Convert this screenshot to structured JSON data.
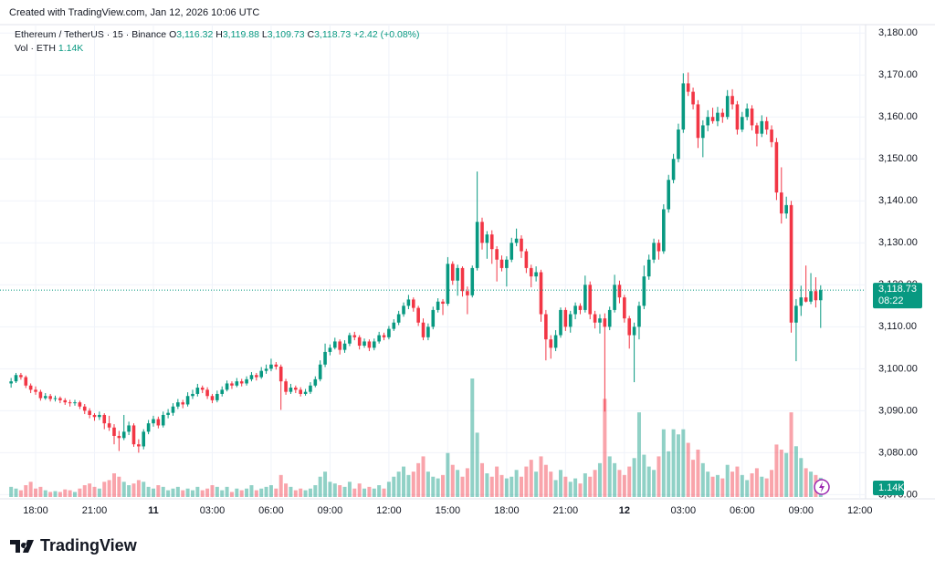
{
  "header": {
    "created": "Created with TradingView.com, Jan 12, 2026 10:06 UTC",
    "symbol": "Ethereum / TetherUS · 15 · Binance",
    "o_label": "O",
    "h_label": "H",
    "l_label": "L",
    "c_label": "C",
    "open": "3,116.32",
    "high": "3,119.88",
    "low": "3,109.73",
    "close": "3,118.73",
    "change": "+2.42 (+0.08%)",
    "volume_title": "Vol · ETH"
  },
  "footer": {
    "brand": "TradingView"
  },
  "chart_data": {
    "type": "candlestick",
    "up_color": "#089981",
    "down_color": "#f23645",
    "grid": true,
    "ylim": [
      3069,
      3182
    ],
    "yticks": [
      {
        "value": 3070,
        "label": "3,070.00"
      },
      {
        "value": 3080,
        "label": "3,080.00"
      },
      {
        "value": 3090,
        "label": "3,090.00"
      },
      {
        "value": 3100,
        "label": "3,100.00"
      },
      {
        "value": 3110,
        "label": "3,110.00"
      },
      {
        "value": 3120,
        "label": "3,120.00"
      },
      {
        "value": 3130,
        "label": "3,130.00"
      },
      {
        "value": 3140,
        "label": "3,140.00"
      },
      {
        "value": 3150,
        "label": "3,150.00"
      },
      {
        "value": 3160,
        "label": "3,160.00"
      },
      {
        "value": 3170,
        "label": "3,170.00"
      },
      {
        "value": 3180,
        "label": "3,180.00"
      }
    ],
    "xlim": [
      -0.4,
      173.6
    ],
    "xticks": [
      {
        "value": 5,
        "label": "18:00"
      },
      {
        "value": 17,
        "label": "21:00"
      },
      {
        "value": 29,
        "label": "11"
      },
      {
        "value": 41,
        "label": "03:00"
      },
      {
        "value": 53,
        "label": "06:00"
      },
      {
        "value": 65,
        "label": "09:00"
      },
      {
        "value": 77,
        "label": "12:00"
      },
      {
        "value": 89,
        "label": "15:00"
      },
      {
        "value": 101,
        "label": "18:00"
      },
      {
        "value": 113,
        "label": "21:00"
      },
      {
        "value": 125,
        "label": "12"
      },
      {
        "value": 137,
        "label": "03:00"
      },
      {
        "value": 149,
        "label": "06:00"
      },
      {
        "value": 161,
        "label": "09:00"
      },
      {
        "value": 173,
        "label": "12:00"
      }
    ],
    "last_price": {
      "value": 3118.73,
      "label": "3,118.73"
    },
    "countdown": "08:22",
    "last_volume": {
      "value": 1140,
      "label": "1.14K"
    },
    "candles": [
      [
        3096.5,
        3097.8,
        3095.5,
        3097,
        600
      ],
      [
        3097,
        3099,
        3096.6,
        3098.5,
        500
      ],
      [
        3098.5,
        3099,
        3097.4,
        3098,
        400
      ],
      [
        3098,
        3098.4,
        3095.4,
        3096,
        700
      ],
      [
        3096,
        3096.5,
        3094.2,
        3095,
        900
      ],
      [
        3095,
        3095.8,
        3093.8,
        3094.5,
        500
      ],
      [
        3094.5,
        3095,
        3092.4,
        3093,
        600
      ],
      [
        3093,
        3094.2,
        3092.6,
        3093.5,
        400
      ],
      [
        3093.5,
        3094,
        3092.2,
        3092.8,
        300
      ],
      [
        3092.8,
        3093.6,
        3092.2,
        3093,
        350
      ],
      [
        3093,
        3093.4,
        3091.8,
        3092.5,
        300
      ],
      [
        3092.5,
        3093,
        3091.4,
        3092,
        450
      ],
      [
        3092,
        3092.6,
        3091,
        3091.8,
        400
      ],
      [
        3091.8,
        3092.6,
        3091.2,
        3092,
        300
      ],
      [
        3092,
        3092.4,
        3090.4,
        3091,
        500
      ],
      [
        3091,
        3091.6,
        3089.2,
        3090,
        700
      ],
      [
        3090,
        3090.6,
        3088.2,
        3089,
        800
      ],
      [
        3089,
        3089.4,
        3087.6,
        3088.5,
        600
      ],
      [
        3088.5,
        3089.8,
        3087.8,
        3089,
        500
      ],
      [
        3089,
        3089.4,
        3085.6,
        3087,
        900
      ],
      [
        3087,
        3088.8,
        3085.2,
        3086,
        1000
      ],
      [
        3086,
        3086.8,
        3082,
        3084,
        1400
      ],
      [
        3084,
        3085.2,
        3080.4,
        3083.5,
        1200
      ],
      [
        3083.5,
        3089,
        3083,
        3085,
        900
      ],
      [
        3085,
        3087.4,
        3084.2,
        3086.5,
        700
      ],
      [
        3086.5,
        3087,
        3081.4,
        3082,
        800
      ],
      [
        3082,
        3083.2,
        3080,
        3081.5,
        1000
      ],
      [
        3081.5,
        3085.6,
        3080.8,
        3085,
        900
      ],
      [
        3085,
        3087.8,
        3084.4,
        3087,
        600
      ],
      [
        3087,
        3088.8,
        3086.2,
        3088,
        500
      ],
      [
        3088,
        3088.6,
        3085.8,
        3086.5,
        700
      ],
      [
        3086.5,
        3089.8,
        3086,
        3089,
        600
      ],
      [
        3089,
        3090.4,
        3088.2,
        3089.5,
        400
      ],
      [
        3089.5,
        3091.8,
        3088.8,
        3091,
        500
      ],
      [
        3091,
        3092.8,
        3090.4,
        3092,
        600
      ],
      [
        3092,
        3092.6,
        3090.6,
        3091.5,
        400
      ],
      [
        3091.5,
        3094.4,
        3091,
        3093.5,
        500
      ],
      [
        3093.5,
        3095,
        3092.8,
        3094,
        400
      ],
      [
        3094,
        3096.4,
        3093.4,
        3095.5,
        600
      ],
      [
        3095.5,
        3096,
        3094.2,
        3095,
        400
      ],
      [
        3095,
        3095.6,
        3092.8,
        3093.5,
        500
      ],
      [
        3093.5,
        3094,
        3091.8,
        3092.5,
        700
      ],
      [
        3092.5,
        3094.8,
        3092,
        3094,
        600
      ],
      [
        3094,
        3095.8,
        3093.4,
        3095,
        400
      ],
      [
        3095,
        3097.2,
        3094.6,
        3096.5,
        600
      ],
      [
        3096.5,
        3097,
        3095.2,
        3096,
        300
      ],
      [
        3096,
        3097.8,
        3095.6,
        3097,
        500
      ],
      [
        3097,
        3097.6,
        3095.8,
        3096.5,
        400
      ],
      [
        3096.5,
        3098.2,
        3096,
        3097.5,
        500
      ],
      [
        3097.5,
        3099.2,
        3097,
        3098.5,
        700
      ],
      [
        3098.5,
        3099,
        3097.2,
        3098,
        400
      ],
      [
        3098,
        3100.4,
        3097.6,
        3099.5,
        500
      ],
      [
        3099.5,
        3101,
        3098.8,
        3100,
        600
      ],
      [
        3100,
        3102.4,
        3099.4,
        3101,
        700
      ],
      [
        3101,
        3101.6,
        3099.8,
        3100.5,
        500
      ],
      [
        3100.5,
        3101,
        3090.2,
        3097,
        1300
      ],
      [
        3097,
        3097.6,
        3093.8,
        3094.5,
        800
      ],
      [
        3094.5,
        3096.4,
        3094,
        3095.5,
        600
      ],
      [
        3095.5,
        3096,
        3094.2,
        3095,
        400
      ],
      [
        3095,
        3095.6,
        3093.4,
        3094,
        500
      ],
      [
        3094,
        3095.2,
        3093.6,
        3094.5,
        400
      ],
      [
        3094.5,
        3096.8,
        3094,
        3096,
        500
      ],
      [
        3096,
        3098.2,
        3095.6,
        3097.5,
        700
      ],
      [
        3097.5,
        3102,
        3097,
        3101,
        1200
      ],
      [
        3101,
        3106,
        3100.4,
        3104,
        1500
      ],
      [
        3104,
        3105.8,
        3103.2,
        3105,
        900
      ],
      [
        3105,
        3107.4,
        3104.6,
        3106.5,
        800
      ],
      [
        3106.5,
        3107,
        3103.4,
        3104.5,
        700
      ],
      [
        3104.5,
        3106.8,
        3103.8,
        3106,
        600
      ],
      [
        3106,
        3108.6,
        3105.4,
        3108,
        900
      ],
      [
        3108,
        3108.8,
        3106.8,
        3107.5,
        500
      ],
      [
        3107.5,
        3108,
        3104.6,
        3105.5,
        800
      ],
      [
        3105.5,
        3107.2,
        3105,
        3106.5,
        500
      ],
      [
        3106.5,
        3107,
        3104.2,
        3105,
        600
      ],
      [
        3105,
        3107.2,
        3104.4,
        3106.5,
        500
      ],
      [
        3106.5,
        3108.8,
        3106,
        3108,
        700
      ],
      [
        3108,
        3108.6,
        3106.8,
        3107.5,
        500
      ],
      [
        3107.5,
        3110.2,
        3107,
        3109.5,
        900
      ],
      [
        3109.5,
        3111.8,
        3109,
        3111,
        1200
      ],
      [
        3111,
        3113.8,
        3110.4,
        3113,
        1500
      ],
      [
        3113,
        3115.8,
        3112.4,
        3115,
        1800
      ],
      [
        3115,
        3117.6,
        3114.2,
        3116.5,
        1300
      ],
      [
        3116.5,
        3117,
        3113.6,
        3114.5,
        1500
      ],
      [
        3114.5,
        3115,
        3110.2,
        3111,
        2000
      ],
      [
        3111,
        3112,
        3106.8,
        3107.5,
        2400
      ],
      [
        3107.5,
        3110.8,
        3106.8,
        3110,
        1500
      ],
      [
        3110,
        3114.8,
        3109.4,
        3114,
        1200
      ],
      [
        3114,
        3116.8,
        3113.4,
        3116,
        1100
      ],
      [
        3116,
        3116.6,
        3112.8,
        3115.5,
        1300
      ],
      [
        3115.5,
        3126.6,
        3115,
        3125,
        2600
      ],
      [
        3125,
        3125.6,
        3120,
        3121,
        1900
      ],
      [
        3121,
        3124.8,
        3117.4,
        3124,
        1600
      ],
      [
        3124,
        3124.4,
        3117.2,
        3118.5,
        1200
      ],
      [
        3118.5,
        3119.6,
        3113,
        3117.5,
        1700
      ],
      [
        3117.5,
        3124.6,
        3117,
        3124,
        7000
      ],
      [
        3124,
        3147,
        3123.4,
        3135,
        3800
      ],
      [
        3135,
        3136,
        3128.4,
        3130,
        2000
      ],
      [
        3130,
        3132.8,
        3126.2,
        3132,
        1400
      ],
      [
        3132,
        3133,
        3125,
        3128.5,
        1200
      ],
      [
        3128.5,
        3129.2,
        3120.8,
        3126,
        1800
      ],
      [
        3126,
        3127,
        3123.2,
        3124,
        1300
      ],
      [
        3124,
        3126.8,
        3119.6,
        3126,
        1100
      ],
      [
        3126,
        3131.2,
        3125.4,
        3130,
        1200
      ],
      [
        3130,
        3133.4,
        3129.2,
        3131,
        1600
      ],
      [
        3131,
        3131.8,
        3126.4,
        3128,
        1200
      ],
      [
        3128,
        3128.6,
        3122.8,
        3124,
        1800
      ],
      [
        3124,
        3124.8,
        3119.4,
        3122,
        2200
      ],
      [
        3122,
        3124.4,
        3120.8,
        3123,
        1500
      ],
      [
        3123,
        3123.6,
        3111.2,
        3113,
        2400
      ],
      [
        3113,
        3114,
        3102,
        3107,
        1900
      ],
      [
        3107,
        3108,
        3102.4,
        3105,
        1500
      ],
      [
        3105,
        3109.2,
        3104.2,
        3108,
        1000
      ],
      [
        3108,
        3114.6,
        3107.4,
        3114,
        1600
      ],
      [
        3114,
        3114.6,
        3109,
        3110,
        1200
      ],
      [
        3110,
        3113.8,
        3108.6,
        3113,
        900
      ],
      [
        3113,
        3115.8,
        3111.8,
        3115,
        1100
      ],
      [
        3115,
        3115.6,
        3113,
        3114,
        800
      ],
      [
        3114,
        3122.2,
        3113.4,
        3120,
        1400
      ],
      [
        3120,
        3120.8,
        3111.8,
        3113,
        1200
      ],
      [
        3113,
        3113.8,
        3109.6,
        3111,
        1600
      ],
      [
        3111,
        3113,
        3108.4,
        3112,
        2000
      ],
      [
        3112,
        3113.2,
        3089.8,
        3110,
        5800
      ],
      [
        3110,
        3114.8,
        3109.2,
        3114,
        2400
      ],
      [
        3114,
        3122.4,
        3113.4,
        3120,
        2000
      ],
      [
        3120,
        3121,
        3115.6,
        3117,
        1600
      ],
      [
        3117,
        3117.6,
        3111,
        3112,
        1300
      ],
      [
        3112,
        3112.6,
        3104.8,
        3108,
        1800
      ],
      [
        3108,
        3111,
        3096.8,
        3110,
        2300
      ],
      [
        3110,
        3116,
        3107,
        3115,
        5000
      ],
      [
        3115,
        3124.6,
        3114.2,
        3122,
        2500
      ],
      [
        3122,
        3127.2,
        3121.2,
        3126,
        1800
      ],
      [
        3126,
        3131,
        3125.2,
        3130,
        1600
      ],
      [
        3130,
        3130.8,
        3126,
        3128,
        2400
      ],
      [
        3128,
        3139.2,
        3127.4,
        3138,
        4000
      ],
      [
        3138,
        3146.2,
        3137.2,
        3145,
        2700
      ],
      [
        3145,
        3151.2,
        3144.2,
        3150,
        4000
      ],
      [
        3150,
        3158.4,
        3149.2,
        3157,
        3700
      ],
      [
        3157,
        3170.4,
        3156.2,
        3168,
        4000
      ],
      [
        3168,
        3170.6,
        3165,
        3166,
        3200
      ],
      [
        3166,
        3167,
        3161.8,
        3163,
        2200
      ],
      [
        3163,
        3164,
        3152.6,
        3155,
        2800
      ],
      [
        3155,
        3159.2,
        3150.4,
        3158,
        2000
      ],
      [
        3158,
        3161.6,
        3156.6,
        3160,
        1500
      ],
      [
        3160,
        3162.2,
        3158.4,
        3159,
        1200
      ],
      [
        3159,
        3162.4,
        3157.8,
        3161,
        1300
      ],
      [
        3161,
        3162,
        3158.6,
        3160,
        1100
      ],
      [
        3160,
        3166.4,
        3159.4,
        3165,
        1900
      ],
      [
        3165,
        3166.6,
        3161.8,
        3163,
        1500
      ],
      [
        3163,
        3163.8,
        3155.8,
        3157,
        1800
      ],
      [
        3157,
        3161.2,
        3156.4,
        3160,
        1300
      ],
      [
        3160,
        3163.2,
        3159.2,
        3162,
        1000
      ],
      [
        3162,
        3162.8,
        3156.8,
        3158,
        1400
      ],
      [
        3158,
        3158.6,
        3153,
        3156,
        1700
      ],
      [
        3156,
        3160.4,
        3155.2,
        3159,
        1200
      ],
      [
        3159,
        3160,
        3155.8,
        3157,
        1100
      ],
      [
        3157,
        3158,
        3152.8,
        3154,
        1600
      ],
      [
        3154,
        3155,
        3140.2,
        3142,
        3100
      ],
      [
        3142,
        3148,
        3134.6,
        3137,
        2800
      ],
      [
        3137,
        3141,
        3135.8,
        3139,
        2600
      ],
      [
        3139,
        3140,
        3108.6,
        3111,
        5000
      ],
      [
        3111,
        3116.6,
        3101.8,
        3115,
        3000
      ],
      [
        3115,
        3119.8,
        3112.6,
        3117,
        2300
      ],
      [
        3117,
        3124.6,
        3115.8,
        3116,
        1700
      ],
      [
        3116,
        3122.8,
        3115.4,
        3118.5,
        1500
      ],
      [
        3118.5,
        3121.8,
        3114.6,
        3116.32,
        1300
      ],
      [
        3116.32,
        3119.88,
        3109.73,
        3118.73,
        1140
      ]
    ]
  }
}
